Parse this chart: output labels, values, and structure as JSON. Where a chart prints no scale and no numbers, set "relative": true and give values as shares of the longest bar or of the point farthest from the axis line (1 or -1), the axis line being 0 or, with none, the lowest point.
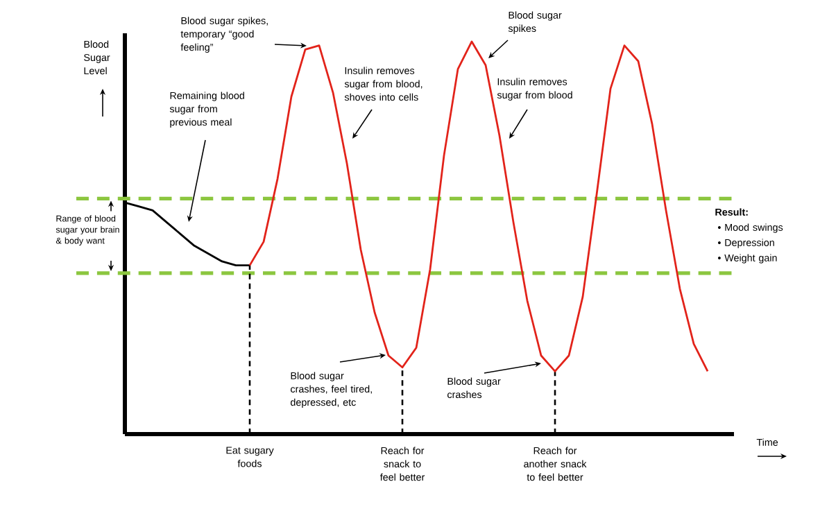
{
  "chart_data": {
    "type": "line",
    "relative": true,
    "xlabel": "Time",
    "ylabel": "Blood Sugar Level",
    "categories": [
      null,
      null,
      null,
      null,
      null,
      null,
      null,
      null,
      null,
      null,
      null,
      null,
      null,
      null,
      null,
      null,
      null,
      null,
      null,
      null,
      null,
      null,
      null,
      null,
      null,
      null,
      null,
      null,
      null,
      null,
      null,
      null,
      null,
      null,
      null,
      null,
      null,
      null,
      null,
      null,
      null,
      null,
      null
    ],
    "series": [
      {
        "color": "#000000",
        "values": [
          0.59,
          0.58,
          0.57,
          0.54,
          0.51,
          0.48,
          0.46,
          0.44,
          0.43,
          0.43,
          null,
          null,
          null,
          null,
          null,
          null,
          null,
          null,
          null,
          null,
          null,
          null,
          null,
          null,
          null,
          null,
          null,
          null,
          null,
          null,
          null,
          null,
          null,
          null,
          null,
          null,
          null,
          null,
          null,
          null,
          null,
          null,
          null
        ]
      },
      {
        "color": "#e2231a",
        "values": [
          null,
          null,
          null,
          null,
          null,
          null,
          null,
          null,
          null,
          0.43,
          0.49,
          0.65,
          0.86,
          0.98,
          0.99,
          0.87,
          0.69,
          0.47,
          0.31,
          0.2,
          0.17,
          0.22,
          0.42,
          0.71,
          0.93,
          1.0,
          0.94,
          0.76,
          0.54,
          0.34,
          0.2,
          0.16,
          0.2,
          0.35,
          0.61,
          0.88,
          0.99,
          0.95,
          0.79,
          0.57,
          0.37,
          0.23,
          0.16
        ]
      }
    ],
    "ref_lines": [
      {
        "axis": "y",
        "value": 0.6,
        "color": "#8cc63f",
        "line_style": "dashed"
      },
      {
        "axis": "y",
        "value": 0.41,
        "color": "#8cc63f",
        "line_style": "dashed"
      }
    ],
    "annotations": [
      "Blood sugar spikes, temporary “good feeling”",
      "Remaining blood sugar from previous meal",
      "Insulin removes sugar from blood, shoves into cells",
      "Blood sugar spikes",
      "Insulin removes sugar from blood",
      "Blood sugar crashes, feel tired, depressed, etc",
      "Blood sugar crashes",
      "Result:",
      "• Mood swings",
      "• Depression",
      "• Weight gain",
      "Range of blood sugar your brain & body want",
      "Eat sugary foods",
      "Reach for snack to feel better",
      "Reach for another snack to feel better"
    ]
  }
}
